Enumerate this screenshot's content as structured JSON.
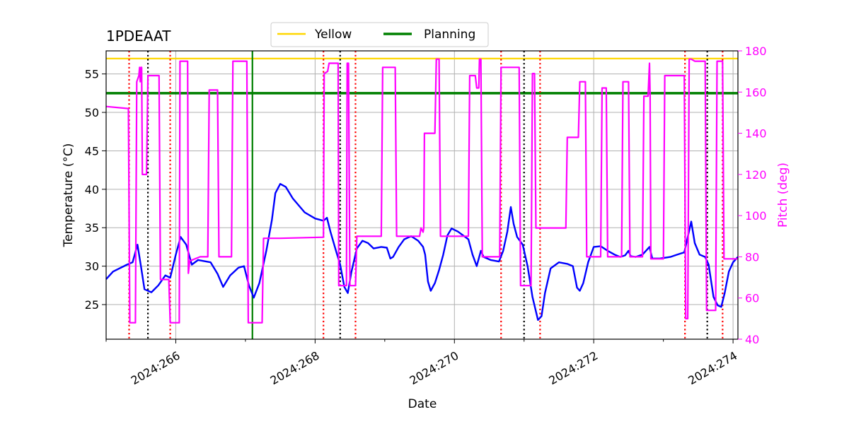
{
  "chart_data": {
    "type": "line",
    "title": "1PDEAAT",
    "xlabel": "Date",
    "ylabel": "Temperature ($^\\circ$C)",
    "ylabel_display": "Temperature (°C)",
    "y2label": "Pitch (deg)",
    "xlim": [
      265.0,
      274.07
    ],
    "ylim": [
      20.5,
      58.0
    ],
    "y2lim": [
      40,
      180
    ],
    "x_ticks": [
      266,
      268,
      270,
      272,
      274
    ],
    "x_tick_labels": [
      "2024:266",
      "2024:268",
      "2024:270",
      "2024:272",
      "2024:274"
    ],
    "y_ticks": [
      25,
      30,
      35,
      40,
      45,
      50,
      55
    ],
    "y_tick_labels": [
      "25",
      "30",
      "35",
      "40",
      "45",
      "50",
      "55"
    ],
    "y2_ticks": [
      40,
      60,
      80,
      100,
      120,
      140,
      160,
      180
    ],
    "y2_tick_labels": [
      "40",
      "60",
      "80",
      "100",
      "120",
      "140",
      "160",
      "180"
    ],
    "grid": true,
    "legend": {
      "placement": "top-center",
      "entries": [
        {
          "label": "Yellow",
          "color": "#ffd700"
        },
        {
          "label": "Planning",
          "color": "#008000"
        }
      ]
    },
    "hlines": [
      {
        "name": "Yellow",
        "y": 57.0,
        "color": "#ffd700"
      },
      {
        "name": "Planning",
        "y": 52.5,
        "color": "#008000"
      }
    ],
    "vlines": [
      {
        "x": 267.1,
        "color": "#008000",
        "style": "solid"
      },
      {
        "x": 265.33,
        "color": "#ff0000",
        "style": "dotted"
      },
      {
        "x": 265.6,
        "color": "#000000",
        "style": "dotted"
      },
      {
        "x": 265.92,
        "color": "#ff0000",
        "style": "dotted"
      },
      {
        "x": 268.12,
        "color": "#ff0000",
        "style": "dotted"
      },
      {
        "x": 268.36,
        "color": "#000000",
        "style": "dotted"
      },
      {
        "x": 268.58,
        "color": "#ff0000",
        "style": "dotted"
      },
      {
        "x": 270.67,
        "color": "#ff0000",
        "style": "dotted"
      },
      {
        "x": 271.0,
        "color": "#000000",
        "style": "dotted"
      },
      {
        "x": 271.23,
        "color": "#ff0000",
        "style": "dotted"
      },
      {
        "x": 273.31,
        "color": "#ff0000",
        "style": "dotted"
      },
      {
        "x": 273.63,
        "color": "#000000",
        "style": "dotted"
      },
      {
        "x": 273.85,
        "color": "#ff0000",
        "style": "dotted"
      }
    ],
    "series": [
      {
        "name": "Temperature",
        "axis": "left",
        "color": "#0000ff",
        "points": [
          [
            265.0,
            28.3
          ],
          [
            265.1,
            29.3
          ],
          [
            265.3,
            30.2
          ],
          [
            265.38,
            30.5
          ],
          [
            265.45,
            32.8
          ],
          [
            265.5,
            30.0
          ],
          [
            265.55,
            27.0
          ],
          [
            265.65,
            26.6
          ],
          [
            265.75,
            27.5
          ],
          [
            265.85,
            28.8
          ],
          [
            265.92,
            28.5
          ],
          [
            266.0,
            31.5
          ],
          [
            266.07,
            33.8
          ],
          [
            266.15,
            32.8
          ],
          [
            266.23,
            30.2
          ],
          [
            266.32,
            30.8
          ],
          [
            266.5,
            30.5
          ],
          [
            266.6,
            29.0
          ],
          [
            266.68,
            27.3
          ],
          [
            266.78,
            28.8
          ],
          [
            266.9,
            29.8
          ],
          [
            266.98,
            30.0
          ],
          [
            267.05,
            27.5
          ],
          [
            267.12,
            25.9
          ],
          [
            267.2,
            27.8
          ],
          [
            267.3,
            32.0
          ],
          [
            267.38,
            36.0
          ],
          [
            267.43,
            39.5
          ],
          [
            267.5,
            40.7
          ],
          [
            267.58,
            40.3
          ],
          [
            267.68,
            38.8
          ],
          [
            267.85,
            37.0
          ],
          [
            268.0,
            36.2
          ],
          [
            268.12,
            35.9
          ],
          [
            268.17,
            36.3
          ],
          [
            268.22,
            34.5
          ],
          [
            268.3,
            32.0
          ],
          [
            268.36,
            30.2
          ],
          [
            268.42,
            27.3
          ],
          [
            268.47,
            26.5
          ],
          [
            268.52,
            29.2
          ],
          [
            268.6,
            32.3
          ],
          [
            268.68,
            33.3
          ],
          [
            268.76,
            33.0
          ],
          [
            268.84,
            32.3
          ],
          [
            268.95,
            32.5
          ],
          [
            269.03,
            32.4
          ],
          [
            269.08,
            31.0
          ],
          [
            269.12,
            31.2
          ],
          [
            269.2,
            32.5
          ],
          [
            269.28,
            33.5
          ],
          [
            269.38,
            33.9
          ],
          [
            269.48,
            33.3
          ],
          [
            269.55,
            32.5
          ],
          [
            269.58,
            31.5
          ],
          [
            269.62,
            28.0
          ],
          [
            269.66,
            26.8
          ],
          [
            269.72,
            27.8
          ],
          [
            269.78,
            29.5
          ],
          [
            269.84,
            31.5
          ],
          [
            269.9,
            34.0
          ],
          [
            269.96,
            34.9
          ],
          [
            270.05,
            34.5
          ],
          [
            270.2,
            33.5
          ],
          [
            270.26,
            31.5
          ],
          [
            270.32,
            30.0
          ],
          [
            270.38,
            32.0
          ],
          [
            270.42,
            31.2
          ],
          [
            270.52,
            30.8
          ],
          [
            270.64,
            30.6
          ],
          [
            270.7,
            32.0
          ],
          [
            270.76,
            34.5
          ],
          [
            270.81,
            37.7
          ],
          [
            270.85,
            35.5
          ],
          [
            270.9,
            33.8
          ],
          [
            270.98,
            32.8
          ],
          [
            271.05,
            30.0
          ],
          [
            271.12,
            26.0
          ],
          [
            271.2,
            23.0
          ],
          [
            271.25,
            23.5
          ],
          [
            271.3,
            26.5
          ],
          [
            271.38,
            29.7
          ],
          [
            271.5,
            30.5
          ],
          [
            271.62,
            30.3
          ],
          [
            271.7,
            30.0
          ],
          [
            271.76,
            27.2
          ],
          [
            271.8,
            26.8
          ],
          [
            271.85,
            27.8
          ],
          [
            271.92,
            30.5
          ],
          [
            272.0,
            32.5
          ],
          [
            272.1,
            32.6
          ],
          [
            272.2,
            32.0
          ],
          [
            272.3,
            31.5
          ],
          [
            272.38,
            31.2
          ],
          [
            272.45,
            31.4
          ],
          [
            272.5,
            32.0
          ],
          [
            272.53,
            31.3
          ],
          [
            272.6,
            31.2
          ],
          [
            272.7,
            31.5
          ],
          [
            272.8,
            32.5
          ],
          [
            272.84,
            31.0
          ],
          [
            272.95,
            31.0
          ],
          [
            273.1,
            31.2
          ],
          [
            273.2,
            31.5
          ],
          [
            273.3,
            31.8
          ],
          [
            273.35,
            33.8
          ],
          [
            273.4,
            35.8
          ],
          [
            273.45,
            33.0
          ],
          [
            273.52,
            31.5
          ],
          [
            273.6,
            31.2
          ],
          [
            273.65,
            30.2
          ],
          [
            273.72,
            26.0
          ],
          [
            273.78,
            24.9
          ],
          [
            273.83,
            24.7
          ],
          [
            273.88,
            26.5
          ],
          [
            273.94,
            29.3
          ],
          [
            274.0,
            30.5
          ],
          [
            274.07,
            31.2
          ]
        ]
      },
      {
        "name": "Pitch",
        "axis": "right",
        "color": "#ff00ff",
        "points": [
          [
            265.0,
            153
          ],
          [
            265.32,
            152
          ],
          [
            265.34,
            48
          ],
          [
            265.42,
            48
          ],
          [
            265.44,
            165
          ],
          [
            265.47,
            168
          ],
          [
            265.48,
            172
          ],
          [
            265.49,
            165
          ],
          [
            265.5,
            172
          ],
          [
            265.51,
            172
          ],
          [
            265.52,
            120
          ],
          [
            265.58,
            120
          ],
          [
            265.6,
            168
          ],
          [
            265.76,
            168
          ],
          [
            265.78,
            69
          ],
          [
            265.9,
            69
          ],
          [
            265.92,
            48
          ],
          [
            266.05,
            48
          ],
          [
            266.06,
            175
          ],
          [
            266.16,
            175
          ],
          [
            266.17,
            175
          ],
          [
            266.18,
            72
          ],
          [
            266.2,
            78
          ],
          [
            266.35,
            80
          ],
          [
            266.45,
            80
          ],
          [
            266.46,
            80
          ],
          [
            266.48,
            161
          ],
          [
            266.6,
            161
          ],
          [
            266.62,
            80
          ],
          [
            266.8,
            80
          ],
          [
            266.82,
            175
          ],
          [
            267.0,
            175
          ],
          [
            267.02,
            175
          ],
          [
            267.04,
            48
          ],
          [
            267.2,
            48
          ],
          [
            267.22,
            48
          ],
          [
            267.24,
            48
          ],
          [
            267.26,
            89
          ],
          [
            267.3,
            89
          ],
          [
            267.5,
            89
          ],
          [
            268.12,
            89.5
          ],
          [
            268.13,
            169
          ],
          [
            268.18,
            170
          ],
          [
            268.2,
            174
          ],
          [
            268.3,
            174
          ],
          [
            268.33,
            174
          ],
          [
            268.34,
            66
          ],
          [
            268.45,
            66
          ],
          [
            268.46,
            174
          ],
          [
            268.48,
            174
          ],
          [
            268.5,
            66
          ],
          [
            268.58,
            66
          ],
          [
            268.6,
            90
          ],
          [
            268.95,
            90
          ],
          [
            268.97,
            172
          ],
          [
            269.15,
            172
          ],
          [
            269.17,
            90
          ],
          [
            269.5,
            90
          ],
          [
            269.52,
            94
          ],
          [
            269.55,
            92
          ],
          [
            269.56,
            94
          ],
          [
            269.57,
            140
          ],
          [
            269.72,
            140
          ],
          [
            269.74,
            176
          ],
          [
            269.78,
            176
          ],
          [
            269.8,
            90
          ],
          [
            270.2,
            90
          ],
          [
            270.22,
            168
          ],
          [
            270.3,
            168
          ],
          [
            270.32,
            162
          ],
          [
            270.35,
            162
          ],
          [
            270.36,
            176
          ],
          [
            270.38,
            176
          ],
          [
            270.4,
            80
          ],
          [
            270.65,
            80
          ],
          [
            270.67,
            172
          ],
          [
            270.93,
            172
          ],
          [
            270.95,
            66
          ],
          [
            271.1,
            66
          ],
          [
            271.12,
            169
          ],
          [
            271.15,
            169
          ],
          [
            271.17,
            94
          ],
          [
            271.6,
            94
          ],
          [
            271.62,
            138
          ],
          [
            271.78,
            138
          ],
          [
            271.8,
            165
          ],
          [
            271.88,
            165
          ],
          [
            271.9,
            80
          ],
          [
            272.1,
            80
          ],
          [
            272.12,
            162
          ],
          [
            272.18,
            162
          ],
          [
            272.2,
            80
          ],
          [
            272.4,
            80
          ],
          [
            272.42,
            165
          ],
          [
            272.5,
            165
          ],
          [
            272.52,
            80
          ],
          [
            272.7,
            80
          ],
          [
            272.72,
            158
          ],
          [
            272.78,
            158
          ],
          [
            272.8,
            174
          ],
          [
            272.81,
            158
          ],
          [
            272.82,
            79
          ],
          [
            273.0,
            79
          ],
          [
            273.02,
            168
          ],
          [
            273.15,
            168
          ],
          [
            273.3,
            168
          ],
          [
            273.32,
            50
          ],
          [
            273.35,
            50
          ],
          [
            273.37,
            176
          ],
          [
            273.4,
            176
          ],
          [
            273.45,
            175
          ],
          [
            273.6,
            175
          ],
          [
            273.62,
            54
          ],
          [
            273.75,
            54
          ],
          [
            273.77,
            175
          ],
          [
            273.85,
            175
          ],
          [
            273.87,
            79
          ],
          [
            274.07,
            79
          ]
        ]
      }
    ]
  }
}
